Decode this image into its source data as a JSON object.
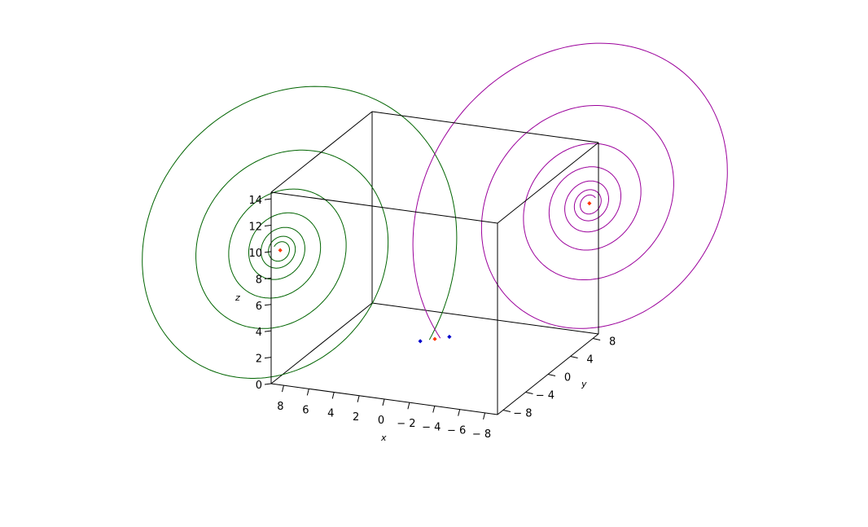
{
  "chart_data": {
    "type": "line",
    "xlabel": "x",
    "ylabel": "y",
    "zlabel": "z",
    "x_ticks": [
      "8",
      "6",
      "4",
      "2",
      "0",
      "− 2",
      "− 4",
      "− 6",
      "− 8"
    ],
    "y_ticks": [
      "− 8",
      "− 4",
      "0",
      "4",
      "8"
    ],
    "z_ticks": [
      "0",
      "2",
      "4",
      "6",
      "8",
      "10",
      "12",
      "14"
    ],
    "x_range": [
      -9,
      9
    ],
    "y_range": [
      -9,
      9
    ],
    "z_range": [
      0,
      14.5
    ],
    "series": [
      {
        "color": "#006400",
        "description_type": "spiral",
        "center": [
          8.5,
          -8.5,
          10
        ],
        "start": [
          0.3,
          -0.3,
          1.5
        ]
      },
      {
        "color": "#9b009b",
        "description_type": "spiral",
        "center": [
          -8.5,
          8.5,
          10
        ],
        "start": [
          -0.3,
          0.3,
          1.5
        ]
      }
    ],
    "points": [
      {
        "x": 0.8,
        "y": -0.8,
        "z": 1.5,
        "color": "#0000cc"
      },
      {
        "x": 0.0,
        "y": 0.0,
        "z": 1.5,
        "color": "#ff3300"
      },
      {
        "x": -0.8,
        "y": 0.8,
        "z": 1.5,
        "color": "#0000cc"
      },
      {
        "x": 8.5,
        "y": -8.5,
        "z": 10,
        "color": "#ff3300"
      },
      {
        "x": -8.5,
        "y": 8.5,
        "z": 10,
        "color": "#ff3300"
      }
    ],
    "grid": false,
    "box": true
  }
}
